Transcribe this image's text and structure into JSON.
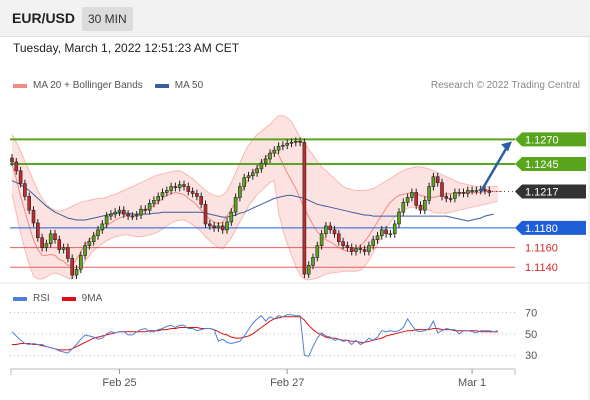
{
  "header": {
    "pair": "EUR/USD",
    "timeframe": "30 MIN"
  },
  "timestamp": "Tuesday, March 1, 2022 12:51:23 AM CET",
  "legend": {
    "bollinger": "MA 20 + Bollinger Bands",
    "ma50": "MA 50",
    "copyright": "Research © 2022 Trading Central"
  },
  "colors": {
    "bollinger": "#f28b82",
    "band_fill": "#fde2e2",
    "ma50": "#3a5f9e",
    "resistance": "#5aa51e",
    "support": "#1f5fd6",
    "support_minor": "#e06060",
    "candle": "#5aa51e",
    "candle_down": "#c42b2b",
    "rsi": "#4f7fd6",
    "rsi_ma": "#dd1111",
    "arrow": "#2a5ea8",
    "last_price": "#333333"
  },
  "chart_data": [
    {
      "type": "candlestick",
      "x_ticks": [
        "Feb 25",
        "Feb 27",
        "Mar 1"
      ],
      "ylim": [
        1.1125,
        1.131
      ],
      "levels": [
        {
          "label": "1.1270",
          "value": 1.127,
          "kind": "resistance"
        },
        {
          "label": "1.1245",
          "value": 1.1245,
          "kind": "resistance"
        },
        {
          "label": "1.1217",
          "value": 1.1217,
          "kind": "last"
        },
        {
          "label": "1.1180",
          "value": 1.118,
          "kind": "support"
        },
        {
          "label": "1.1160",
          "value": 1.116,
          "kind": "support_minor"
        },
        {
          "label": "1.1140",
          "value": 1.114,
          "kind": "support_minor"
        }
      ],
      "close": [
        1.1247,
        1.1238,
        1.1225,
        1.1212,
        1.1198,
        1.1185,
        1.117,
        1.116,
        1.1164,
        1.1174,
        1.1168,
        1.1158,
        1.116,
        1.1149,
        1.1132,
        1.1138,
        1.1152,
        1.1162,
        1.1166,
        1.1172,
        1.1178,
        1.1184,
        1.1192,
        1.1194,
        1.1196,
        1.1198,
        1.1194,
        1.1192,
        1.1192,
        1.1193,
        1.1199,
        1.1198,
        1.1205,
        1.1208,
        1.1212,
        1.1216,
        1.1218,
        1.1222,
        1.1221,
        1.1224,
        1.1222,
        1.1217,
        1.1215,
        1.1212,
        1.1204,
        1.1184,
        1.1182,
        1.118,
        1.1182,
        1.1178,
        1.1186,
        1.1196,
        1.1211,
        1.1222,
        1.1231,
        1.1233,
        1.1236,
        1.124,
        1.1246,
        1.125,
        1.1256,
        1.1259,
        1.1263,
        1.1264,
        1.1266,
        1.1267,
        1.1268,
        1.1267,
        1.1133,
        1.1142,
        1.115,
        1.1162,
        1.1174,
        1.1182,
        1.1178,
        1.1174,
        1.1166,
        1.1162,
        1.116,
        1.1156,
        1.1159,
        1.1158,
        1.1156,
        1.1162,
        1.1168,
        1.1172,
        1.1178,
        1.1174,
        1.1174,
        1.1184,
        1.1196,
        1.1206,
        1.1211,
        1.1216,
        1.1203,
        1.1198,
        1.1208,
        1.1222,
        1.1232,
        1.1226,
        1.1212,
        1.121,
        1.121,
        1.1216,
        1.1216,
        1.1215,
        1.1218,
        1.1218,
        1.1218,
        1.1219,
        1.1218,
        1.1216
      ],
      "ma20": [
        1.1245,
        1.123,
        1.1212,
        1.1197,
        1.1182,
        1.1168,
        1.1158,
        1.1152,
        1.1152,
        1.1153,
        1.1152,
        1.1148,
        1.1146,
        1.1142,
        1.1142,
        1.1148,
        1.1156,
        1.1163,
        1.1168,
        1.1172,
        1.1176,
        1.1178,
        1.1182,
        1.1185,
        1.1188,
        1.119,
        1.1192,
        1.1193,
        1.1193,
        1.1193,
        1.1196,
        1.1198,
        1.12,
        1.1203,
        1.1206,
        1.121,
        1.1213,
        1.1215,
        1.1216,
        1.1215,
        1.1214,
        1.121,
        1.1207,
        1.1203,
        1.1198,
        1.1193,
        1.1189,
        1.1186,
        1.1184,
        1.1186,
        1.1192,
        1.1199,
        1.1206,
        1.1214,
        1.1222,
        1.123,
        1.1236,
        1.1242,
        1.1247,
        1.1252,
        1.1256,
        1.1259,
        1.1254,
        1.1245,
        1.1236,
        1.1228,
        1.122,
        1.121,
        1.12,
        1.1191,
        1.1183,
        1.1176,
        1.1172,
        1.1168,
        1.1166,
        1.1163,
        1.116,
        1.1158,
        1.1156,
        1.1156,
        1.1158,
        1.1162,
        1.1166,
        1.1172,
        1.1179,
        1.1186,
        1.1193,
        1.12,
        1.1206,
        1.121,
        1.1213,
        1.1214,
        1.1215,
        1.1216,
        1.1215,
        1.1213,
        1.1212,
        1.1211,
        1.1211,
        1.1212,
        1.1213,
        1.1214,
        1.1215,
        1.1215,
        1.1216,
        1.1216,
        1.1216,
        1.1216,
        1.1216,
        1.1216,
        1.1217,
        1.1217,
        1.1217,
        1.1217,
        1.1217
      ],
      "upper_band": [
        1.1275,
        1.1267,
        1.1258,
        1.1248,
        1.1238,
        1.1228,
        1.1218,
        1.121,
        1.1204,
        1.12,
        1.1198,
        1.1197,
        1.1198,
        1.12,
        1.1202,
        1.1204,
        1.1206,
        1.1207,
        1.1208,
        1.1209,
        1.121,
        1.121,
        1.1211,
        1.1213,
        1.1214,
        1.1216,
        1.1218,
        1.122,
        1.1222,
        1.1224,
        1.1226,
        1.1228,
        1.123,
        1.1232,
        1.1234,
        1.1235,
        1.1236,
        1.1237,
        1.1238,
        1.1238,
        1.1236,
        1.1233,
        1.123,
        1.1226,
        1.1222,
        1.1218,
        1.1215,
        1.1213,
        1.1212,
        1.1213,
        1.1218,
        1.1226,
        1.1236,
        1.1246,
        1.1256,
        1.1264,
        1.127,
        1.1275,
        1.1278,
        1.1282,
        1.1285,
        1.129,
        1.1294,
        1.1294,
        1.1292,
        1.1288,
        1.128,
        1.1272,
        1.1266,
        1.126,
        1.1254,
        1.1248,
        1.1242,
        1.1238,
        1.1234,
        1.123,
        1.1226,
        1.1222,
        1.122,
        1.1219,
        1.1218,
        1.1218,
        1.1218,
        1.1219,
        1.122,
        1.1222,
        1.1225,
        1.1228,
        1.123,
        1.1233,
        1.1236,
        1.1238,
        1.124,
        1.1241,
        1.1242,
        1.1242,
        1.1241,
        1.124,
        1.1238,
        1.1236,
        1.1234,
        1.1232,
        1.123,
        1.1228,
        1.1226,
        1.1225,
        1.1224,
        1.1223,
        1.1222,
        1.1222,
        1.1222,
        1.1222,
        1.1222,
        1.1222
      ],
      "lower_band": [
        1.1215,
        1.1195,
        1.1175,
        1.1158,
        1.1143,
        1.1131,
        1.1128,
        1.1128,
        1.113,
        1.1133,
        1.1134,
        1.1133,
        1.1131,
        1.1129,
        1.1128,
        1.1132,
        1.1138,
        1.1146,
        1.1152,
        1.1157,
        1.1161,
        1.1164,
        1.1167,
        1.1169,
        1.1171,
        1.1172,
        1.1173,
        1.1173,
        1.1172,
        1.1171,
        1.1171,
        1.1172,
        1.1173,
        1.1174,
        1.1176,
        1.1179,
        1.1182,
        1.1185,
        1.1187,
        1.1188,
        1.1188,
        1.1186,
        1.1183,
        1.118,
        1.1176,
        1.1171,
        1.1167,
        1.1163,
        1.116,
        1.1159,
        1.1164,
        1.117,
        1.1178,
        1.1186,
        1.1194,
        1.1202,
        1.1208,
        1.1214,
        1.1218,
        1.1222,
        1.1226,
        1.1228,
        1.1196,
        1.1178,
        1.1164,
        1.1152,
        1.1141,
        1.1132,
        1.1128,
        1.1127,
        1.1128,
        1.1129,
        1.1131,
        1.1133,
        1.1134,
        1.1135,
        1.1135,
        1.1136,
        1.1136,
        1.1136,
        1.1136,
        1.1137,
        1.1141,
        1.1147,
        1.1155,
        1.1163,
        1.1172,
        1.1179,
        1.1186,
        1.1191,
        1.1195,
        1.1198,
        1.12,
        1.1201,
        1.1201,
        1.12,
        1.1199,
        1.1198,
        1.1196,
        1.1195,
        1.1195,
        1.1195,
        1.1196,
        1.1197,
        1.1198,
        1.1199,
        1.12,
        1.1201,
        1.1202,
        1.1203,
        1.1204,
        1.1205,
        1.1206,
        1.1207
      ],
      "ma50": [
        1.1228,
        1.1226,
        1.1224,
        1.1221,
        1.1218,
        1.1214,
        1.121,
        1.1206,
        1.1202,
        1.1199,
        1.1196,
        1.1194,
        1.1192,
        1.119,
        1.1189,
        1.1188,
        1.1188,
        1.1188,
        1.1189,
        1.119,
        1.1191,
        1.1192,
        1.1193,
        1.1194,
        1.1195,
        1.1195,
        1.1195,
        1.1195,
        1.1194,
        1.1194,
        1.1194,
        1.1194,
        1.1194,
        1.1195,
        1.1195,
        1.1196,
        1.1196,
        1.1196,
        1.1196,
        1.1196,
        1.1196,
        1.1196,
        1.1196,
        1.1196,
        1.1196,
        1.1195,
        1.1194,
        1.1193,
        1.1192,
        1.1191,
        1.1191,
        1.1192,
        1.1193,
        1.1195,
        1.1196,
        1.1198,
        1.12,
        1.1202,
        1.1204,
        1.1206,
        1.1208,
        1.121,
        1.1211,
        1.1212,
        1.1213,
        1.1213,
        1.1212,
        1.1211,
        1.121,
        1.1208,
        1.1206,
        1.1204,
        1.1203,
        1.1202,
        1.1201,
        1.12,
        1.1199,
        1.1198,
        1.1197,
        1.1196,
        1.1195,
        1.1194,
        1.1193,
        1.1193,
        1.1192,
        1.1192,
        1.1192,
        1.1192,
        1.1192,
        1.1192,
        1.1192,
        1.1192,
        1.1192,
        1.1192,
        1.1192,
        1.1192,
        1.1192,
        1.1192,
        1.1192,
        1.1192,
        1.1192,
        1.1192,
        1.1191,
        1.119,
        1.1189,
        1.1188,
        1.1187,
        1.1188,
        1.1189,
        1.119,
        1.1192,
        1.1193,
        1.1194
      ],
      "forecast_arrow": {
        "from": 1.1217,
        "to": 1.127
      }
    },
    {
      "type": "line",
      "name": "RSI",
      "y_ticks": [
        70,
        50,
        30
      ],
      "ylim": [
        18,
        78
      ],
      "rsi": [
        52,
        48,
        44,
        41,
        40,
        41,
        40,
        40,
        38,
        37,
        36,
        34,
        33,
        32,
        36,
        40,
        45,
        49,
        48,
        47,
        45,
        46,
        50,
        52,
        51,
        52,
        52,
        49,
        49,
        52,
        54,
        55,
        52,
        52,
        54,
        55,
        57,
        58,
        56,
        58,
        58,
        55,
        55,
        53,
        54,
        55,
        55,
        54,
        43,
        45,
        42,
        41,
        42,
        43,
        48,
        54,
        60,
        64,
        67,
        62,
        66,
        64,
        67,
        66,
        68,
        68,
        67,
        67,
        30,
        29,
        38,
        46,
        51,
        48,
        47,
        44,
        45,
        43,
        44,
        40,
        44,
        40,
        42,
        46,
        44,
        47,
        53,
        52,
        53,
        52,
        53,
        56,
        64,
        58,
        53,
        52,
        53,
        55,
        62,
        51,
        53,
        55,
        54,
        54,
        50,
        53,
        53,
        52,
        51,
        53,
        53,
        53,
        52,
        53
      ],
      "ma9": [
        40,
        40,
        41,
        41,
        41,
        40,
        40,
        39,
        38,
        37,
        36,
        35,
        35,
        35,
        36,
        38,
        40,
        42,
        44,
        46,
        47,
        48,
        49,
        50,
        51,
        52,
        52,
        52,
        52,
        52,
        52,
        52,
        53,
        53,
        53,
        54,
        54,
        55,
        55,
        56,
        56,
        56,
        56,
        56,
        55,
        55,
        55,
        54,
        52,
        50,
        49,
        47,
        46,
        46,
        47,
        48,
        50,
        53,
        56,
        59,
        62,
        64,
        65,
        66,
        66,
        66,
        66,
        66,
        63,
        58,
        54,
        51,
        49,
        47,
        46,
        46,
        45,
        44,
        44,
        43,
        43,
        42,
        42,
        43,
        44,
        45,
        46,
        48,
        49,
        50,
        51,
        52,
        53,
        53,
        54,
        54,
        54,
        54,
        55,
        55,
        54,
        54,
        54,
        53,
        53,
        53,
        53,
        53,
        53,
        52,
        52,
        52,
        52,
        52
      ],
      "legend": [
        "RSI",
        "9MA"
      ]
    }
  ]
}
